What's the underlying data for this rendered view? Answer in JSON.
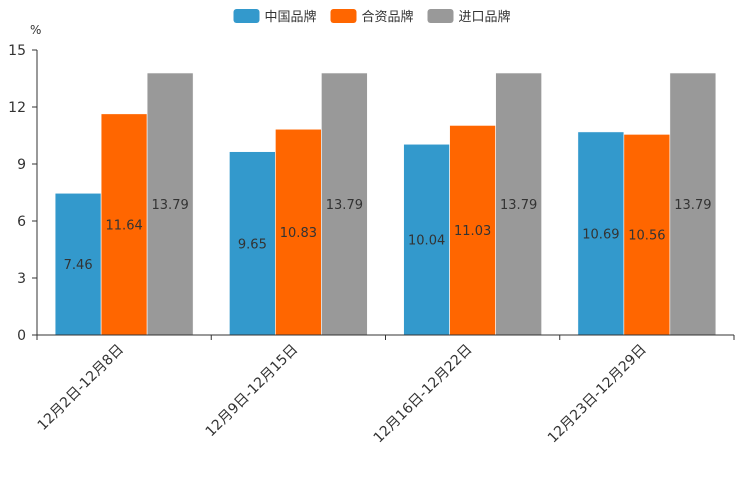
{
  "chart_data": {
    "type": "bar",
    "title": "",
    "ylabel": "%",
    "xlabel": "",
    "ylim": [
      0,
      15
    ],
    "yticks": [
      0,
      3,
      6,
      9,
      12,
      15
    ],
    "grid": false,
    "legend_position": "top-center",
    "categories": [
      "12月2日-12月8日",
      "12月9日-12月15日",
      "12月16日-12月22日",
      "12月23日-12月29日"
    ],
    "series": [
      {
        "name": "中国品牌",
        "color": "#3399cc",
        "values": [
          7.46,
          9.65,
          10.04,
          10.69
        ]
      },
      {
        "name": "合资品牌",
        "color": "#ff6600",
        "values": [
          11.64,
          10.83,
          11.03,
          10.56
        ]
      },
      {
        "name": "进口品牌",
        "color": "#999999",
        "values": [
          13.79,
          13.79,
          13.79,
          13.79
        ]
      }
    ]
  }
}
